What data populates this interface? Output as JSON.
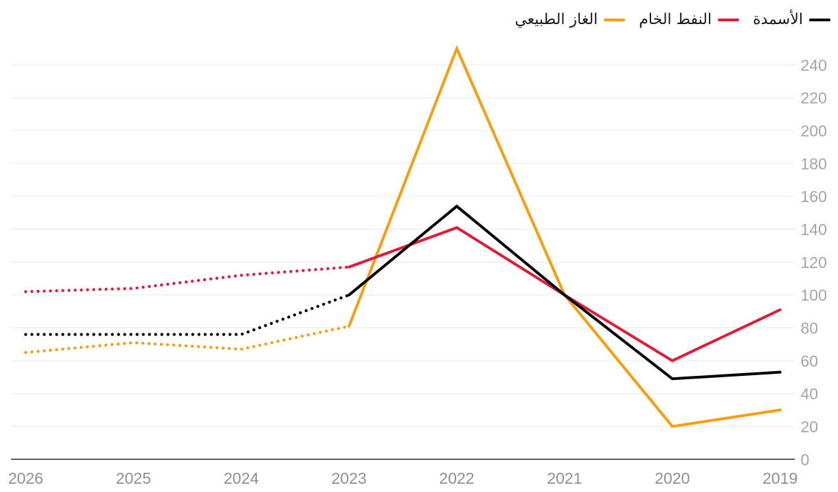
{
  "chart_data": {
    "type": "line",
    "title": "",
    "direction": "rtl",
    "grid": true,
    "legend_position": "top-right",
    "x_axis": {
      "tick_labels": [
        "2026",
        "2025",
        "2024",
        "2023",
        "2022",
        "2021",
        "2020",
        "2019"
      ],
      "order_note": "years displayed right-to-left: 2019 at right, 2026 at left"
    },
    "y_axis": {
      "tick_labels": [
        "0",
        "20",
        "40",
        "60",
        "80",
        "100",
        "120",
        "140",
        "160",
        "180",
        "200",
        "220",
        "240"
      ],
      "tick_values": [
        0,
        20,
        40,
        60,
        80,
        100,
        120,
        140,
        160,
        180,
        200,
        220,
        240
      ],
      "min": 0,
      "max": 250,
      "side": "right"
    },
    "series": [
      {
        "key": "natural_gas",
        "label": "الغاز الطبيعي",
        "color": "#F99D0B",
        "historical": {
          "years": [
            2019,
            2020,
            2021,
            2022,
            2023
          ],
          "values": [
            30,
            20,
            100,
            250,
            81
          ]
        },
        "forecast": {
          "years": [
            2023,
            2024,
            2025,
            2026
          ],
          "values": [
            81,
            67,
            71,
            65
          ],
          "style": "dotted"
        }
      },
      {
        "key": "crude_oil",
        "label": "النفط الخام",
        "color": "#E11A38",
        "historical": {
          "years": [
            2019,
            2020,
            2021,
            2022,
            2023
          ],
          "values": [
            91,
            60,
            100,
            141,
            117
          ]
        },
        "forecast": {
          "years": [
            2023,
            2024,
            2025,
            2026
          ],
          "values": [
            117,
            112,
            104,
            102
          ],
          "style": "dotted"
        }
      },
      {
        "key": "fertilizers",
        "label": "الأسمدة",
        "color": "#000000",
        "historical": {
          "years": [
            2019,
            2020,
            2021,
            2022,
            2023
          ],
          "values": [
            53,
            49,
            100,
            154,
            100
          ]
        },
        "forecast": {
          "years": [
            2023,
            2024,
            2025,
            2026
          ],
          "values": [
            100,
            76,
            76,
            76
          ],
          "style": "dotted"
        }
      }
    ],
    "legend": [
      {
        "key": "fertilizers",
        "label": "الأسمدة",
        "color": "#000000"
      },
      {
        "key": "crude_oil",
        "label": "النفط الخام",
        "color": "#E11A38"
      },
      {
        "key": "natural_gas",
        "label": "الغاز الطبيعي",
        "color": "#F99D0B"
      }
    ]
  },
  "colors": {
    "background": "#ffffff",
    "gridline": "#e9e9e9",
    "axis_line": "#262626",
    "x_tick_label": "#8f8f8f",
    "y_tick_label": "#a4a4a4",
    "legend_text": "#1a1a1a"
  }
}
